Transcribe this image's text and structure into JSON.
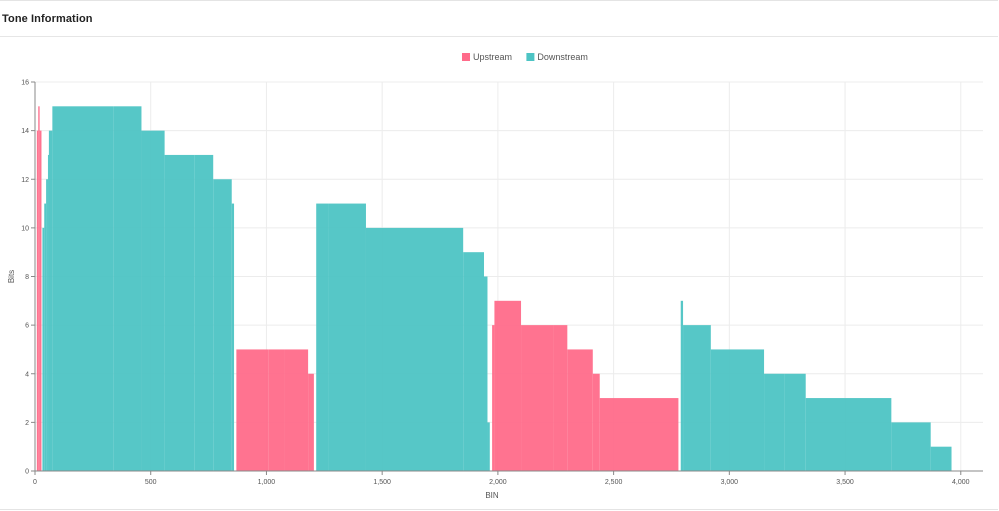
{
  "panel": {
    "title": "Tone Information"
  },
  "chart_data": {
    "type": "bar",
    "title": "Tone Information",
    "xlabel": "BIN",
    "ylabel": "Bits",
    "xlim": [
      0,
      4096
    ],
    "ylim": [
      0,
      16
    ],
    "xticks": [
      0,
      500,
      1000,
      1500,
      2000,
      2500,
      3000,
      3500,
      4000
    ],
    "xtick_labels": [
      "0",
      "500",
      "1,000",
      "1,500",
      "2,000",
      "2,500",
      "3,000",
      "3,500",
      "4,000"
    ],
    "yticks": [
      0,
      2,
      4,
      6,
      8,
      10,
      12,
      14,
      16
    ],
    "ytick_labels": [
      "0",
      "2",
      "4",
      "6",
      "8",
      "10",
      "12",
      "14",
      "16"
    ],
    "legend_position": "top-center",
    "series": [
      {
        "name": "Upstream",
        "color": "#ff6b8a",
        "segments": [
          {
            "x0": 8,
            "x1": 14,
            "bits": 14
          },
          {
            "x0": 14,
            "x1": 20,
            "bits": 15
          },
          {
            "x0": 20,
            "x1": 28,
            "bits": 14
          },
          {
            "x0": 870,
            "x1": 1010,
            "bits": 5
          },
          {
            "x0": 1010,
            "x1": 1080,
            "bits": 5
          },
          {
            "x0": 1080,
            "x1": 1180,
            "bits": 5
          },
          {
            "x0": 1180,
            "x1": 1205,
            "bits": 4
          },
          {
            "x0": 1975,
            "x1": 1985,
            "bits": 6
          },
          {
            "x0": 1985,
            "x1": 2100,
            "bits": 7
          },
          {
            "x0": 2100,
            "x1": 2240,
            "bits": 6
          },
          {
            "x0": 2240,
            "x1": 2300,
            "bits": 6
          },
          {
            "x0": 2300,
            "x1": 2410,
            "bits": 5
          },
          {
            "x0": 2410,
            "x1": 2440,
            "bits": 4
          },
          {
            "x0": 2440,
            "x1": 2780,
            "bits": 3
          }
        ]
      },
      {
        "name": "Downstream",
        "color": "#4dc4c4",
        "segments": [
          {
            "x0": 32,
            "x1": 40,
            "bits": 10
          },
          {
            "x0": 40,
            "x1": 48,
            "bits": 11
          },
          {
            "x0": 48,
            "x1": 56,
            "bits": 12
          },
          {
            "x0": 56,
            "x1": 60,
            "bits": 13
          },
          {
            "x0": 60,
            "x1": 75,
            "bits": 14
          },
          {
            "x0": 75,
            "x1": 340,
            "bits": 15
          },
          {
            "x0": 340,
            "x1": 460,
            "bits": 15
          },
          {
            "x0": 460,
            "x1": 560,
            "bits": 14
          },
          {
            "x0": 560,
            "x1": 690,
            "bits": 13
          },
          {
            "x0": 690,
            "x1": 770,
            "bits": 13
          },
          {
            "x0": 770,
            "x1": 850,
            "bits": 12
          },
          {
            "x0": 850,
            "x1": 860,
            "bits": 11
          },
          {
            "x0": 1215,
            "x1": 1270,
            "bits": 11
          },
          {
            "x0": 1270,
            "x1": 1430,
            "bits": 11
          },
          {
            "x0": 1430,
            "x1": 1850,
            "bits": 10
          },
          {
            "x0": 1850,
            "x1": 1940,
            "bits": 9
          },
          {
            "x0": 1940,
            "x1": 1955,
            "bits": 8
          },
          {
            "x0": 1955,
            "x1": 1965,
            "bits": 2
          },
          {
            "x0": 2790,
            "x1": 2800,
            "bits": 7
          },
          {
            "x0": 2800,
            "x1": 2920,
            "bits": 6
          },
          {
            "x0": 2920,
            "x1": 3150,
            "bits": 5
          },
          {
            "x0": 3150,
            "x1": 3240,
            "bits": 4
          },
          {
            "x0": 3240,
            "x1": 3330,
            "bits": 4
          },
          {
            "x0": 3330,
            "x1": 3700,
            "bits": 3
          },
          {
            "x0": 3700,
            "x1": 3870,
            "bits": 2
          },
          {
            "x0": 3870,
            "x1": 3960,
            "bits": 1
          }
        ]
      }
    ]
  }
}
